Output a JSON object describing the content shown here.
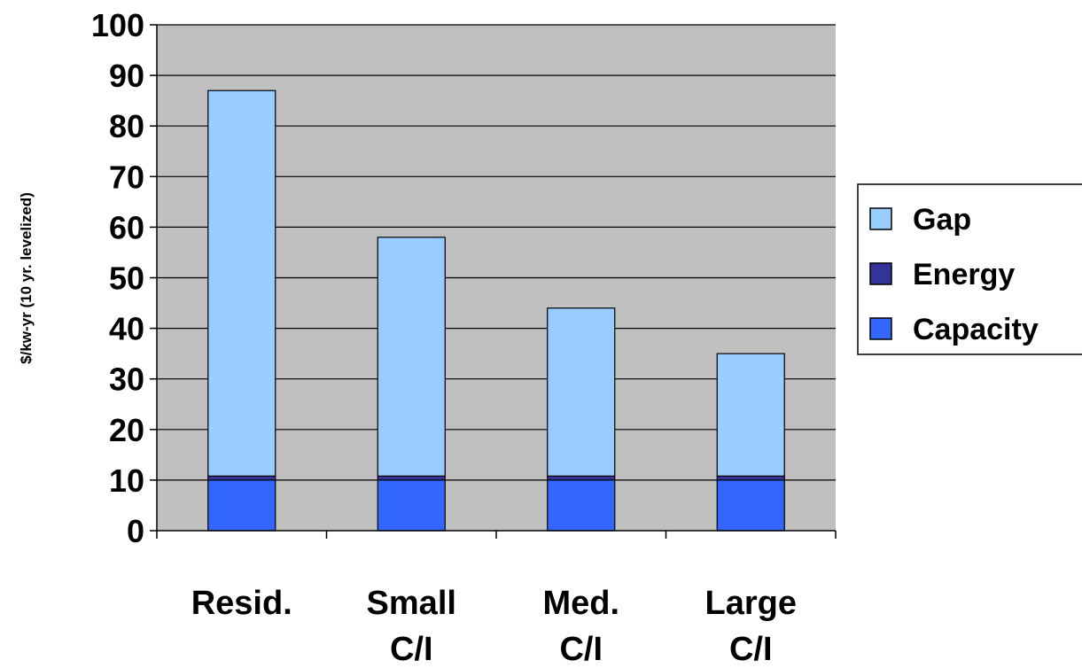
{
  "chart_data": {
    "type": "bar",
    "stacked": true,
    "categories": [
      [
        "Resid."
      ],
      [
        "Small",
        "C/I"
      ],
      [
        "Med.",
        "C/I"
      ],
      [
        "Large",
        "C/I"
      ]
    ],
    "series": [
      {
        "name": "Capacity",
        "values": [
          10,
          10,
          10,
          10
        ],
        "color": "#3366ff"
      },
      {
        "name": "Energy",
        "values": [
          0.8,
          0.8,
          0.8,
          0.8
        ],
        "color": "#333399"
      },
      {
        "name": "Gap",
        "values": [
          76.2,
          47.2,
          33.2,
          24.2
        ],
        "color": "#99ccff"
      }
    ],
    "legend_order": [
      "Gap",
      "Energy",
      "Capacity"
    ],
    "legend_position": "right",
    "ylabel": "$/kw-yr (10 yr. levelized)",
    "xlabel": "",
    "ylim": [
      0,
      100
    ],
    "yticks": [
      0,
      10,
      20,
      30,
      40,
      50,
      60,
      70,
      80,
      90,
      100
    ],
    "grid": true,
    "plot_background": "#c0c0c0"
  }
}
